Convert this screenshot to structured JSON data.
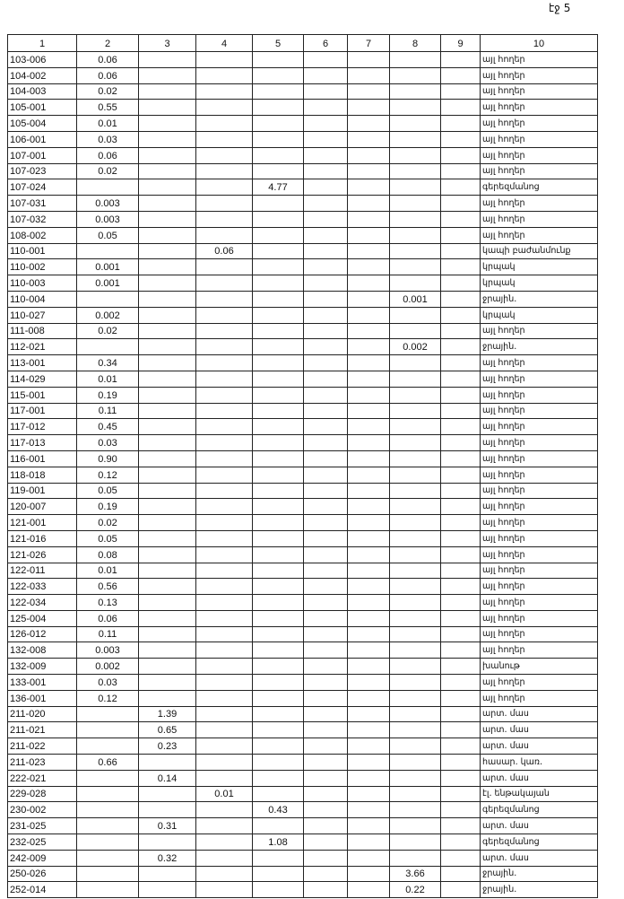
{
  "page_label": "էջ 5",
  "headers": [
    "1",
    "2",
    "3",
    "4",
    "5",
    "6",
    "7",
    "8",
    "9",
    "10"
  ],
  "rows": [
    [
      "103-006",
      2,
      "0.06",
      "այլ հողեր"
    ],
    [
      "104-002",
      2,
      "0.06",
      "այլ հողեր"
    ],
    [
      "104-003",
      2,
      "0.02",
      "այլ հողեր"
    ],
    [
      "105-001",
      2,
      "0.55",
      "այլ հողեր"
    ],
    [
      "105-004",
      2,
      "0.01",
      "այլ հողեր"
    ],
    [
      "106-001",
      2,
      "0.03",
      "այլ հողեր"
    ],
    [
      "107-001",
      2,
      "0.06",
      "այլ հողեր"
    ],
    [
      "107-023",
      2,
      "0.02",
      "այլ հողեր"
    ],
    [
      "107-024",
      5,
      "4.77",
      "գերեզմանոց"
    ],
    [
      "107-031",
      2,
      "0.003",
      "այլ հողեր"
    ],
    [
      "107-032",
      2,
      "0.003",
      "այլ հողեր"
    ],
    [
      "108-002",
      2,
      "0.05",
      "այլ հողեր"
    ],
    [
      "110-001",
      4,
      "0.06",
      "կապի բաժանմունք"
    ],
    [
      "110-002",
      2,
      "0.001",
      "կրպակ"
    ],
    [
      "110-003",
      2,
      "0.001",
      "կրպակ"
    ],
    [
      "110-004",
      8,
      "0.001",
      "ջրային."
    ],
    [
      "110-027",
      2,
      "0.002",
      "կրպակ"
    ],
    [
      "111-008",
      2,
      "0.02",
      "այլ հողեր"
    ],
    [
      "112-021",
      8,
      "0.002",
      "ջրային."
    ],
    [
      "113-001",
      2,
      "0.34",
      "այլ հողեր"
    ],
    [
      "114-029",
      2,
      "0.01",
      "այլ հողեր"
    ],
    [
      "115-001",
      2,
      "0.19",
      "այլ հողեր"
    ],
    [
      "117-001",
      2,
      "0.11",
      "այլ հողեր"
    ],
    [
      "117-012",
      2,
      "0.45",
      "այլ հողեր"
    ],
    [
      "117-013",
      2,
      "0.03",
      "այլ հողեր"
    ],
    [
      "116-001",
      2,
      "0.90",
      "այլ հողեր"
    ],
    [
      "118-018",
      2,
      "0.12",
      "այլ հողեր"
    ],
    [
      "119-001",
      2,
      "0.05",
      "այլ հողեր"
    ],
    [
      "120-007",
      2,
      "0.19",
      "այլ հողեր"
    ],
    [
      "121-001",
      2,
      "0.02",
      "այլ հողեր"
    ],
    [
      "121-016",
      2,
      "0.05",
      "այլ հողեր"
    ],
    [
      "121-026",
      2,
      "0.08",
      "այլ հողեր"
    ],
    [
      "122-011",
      2,
      "0.01",
      "այլ հողեր"
    ],
    [
      "122-033",
      2,
      "0.56",
      "այլ հողեր"
    ],
    [
      "122-034",
      2,
      "0.13",
      "այլ հողեր"
    ],
    [
      "125-004",
      2,
      "0.06",
      "այլ հողեր"
    ],
    [
      "126-012",
      2,
      "0.11",
      "այլ հողեր"
    ],
    [
      "132-008",
      2,
      "0.003",
      "այլ հողեր"
    ],
    [
      "132-009",
      2,
      "0.002",
      "խանութ"
    ],
    [
      "133-001",
      2,
      "0.03",
      "այլ հողեր"
    ],
    [
      "136-001",
      2,
      "0.12",
      "այլ հողեր"
    ],
    [
      "211-020",
      3,
      "1.39",
      "արտ. մաս"
    ],
    [
      "211-021",
      3,
      "0.65",
      "արտ. մաս"
    ],
    [
      "211-022",
      3,
      "0.23",
      "արտ. մաս"
    ],
    [
      "211-023",
      2,
      "0.66",
      "հասար. կառ."
    ],
    [
      "222-021",
      3,
      "0.14",
      "արտ. մաս"
    ],
    [
      "229-028",
      4,
      "0.01",
      "էլ. ենթակայան"
    ],
    [
      "230-002",
      5,
      "0.43",
      "գերեզմանոց"
    ],
    [
      "231-025",
      3,
      "0.31",
      "արտ. մաս"
    ],
    [
      "232-025",
      5,
      "1.08",
      "գերեզմանոց"
    ],
    [
      "242-009",
      3,
      "0.32",
      "արտ. մաս"
    ],
    [
      "250-026",
      8,
      "3.66",
      "ջրային."
    ],
    [
      "252-014",
      8,
      "0.22",
      "ջրային."
    ]
  ]
}
